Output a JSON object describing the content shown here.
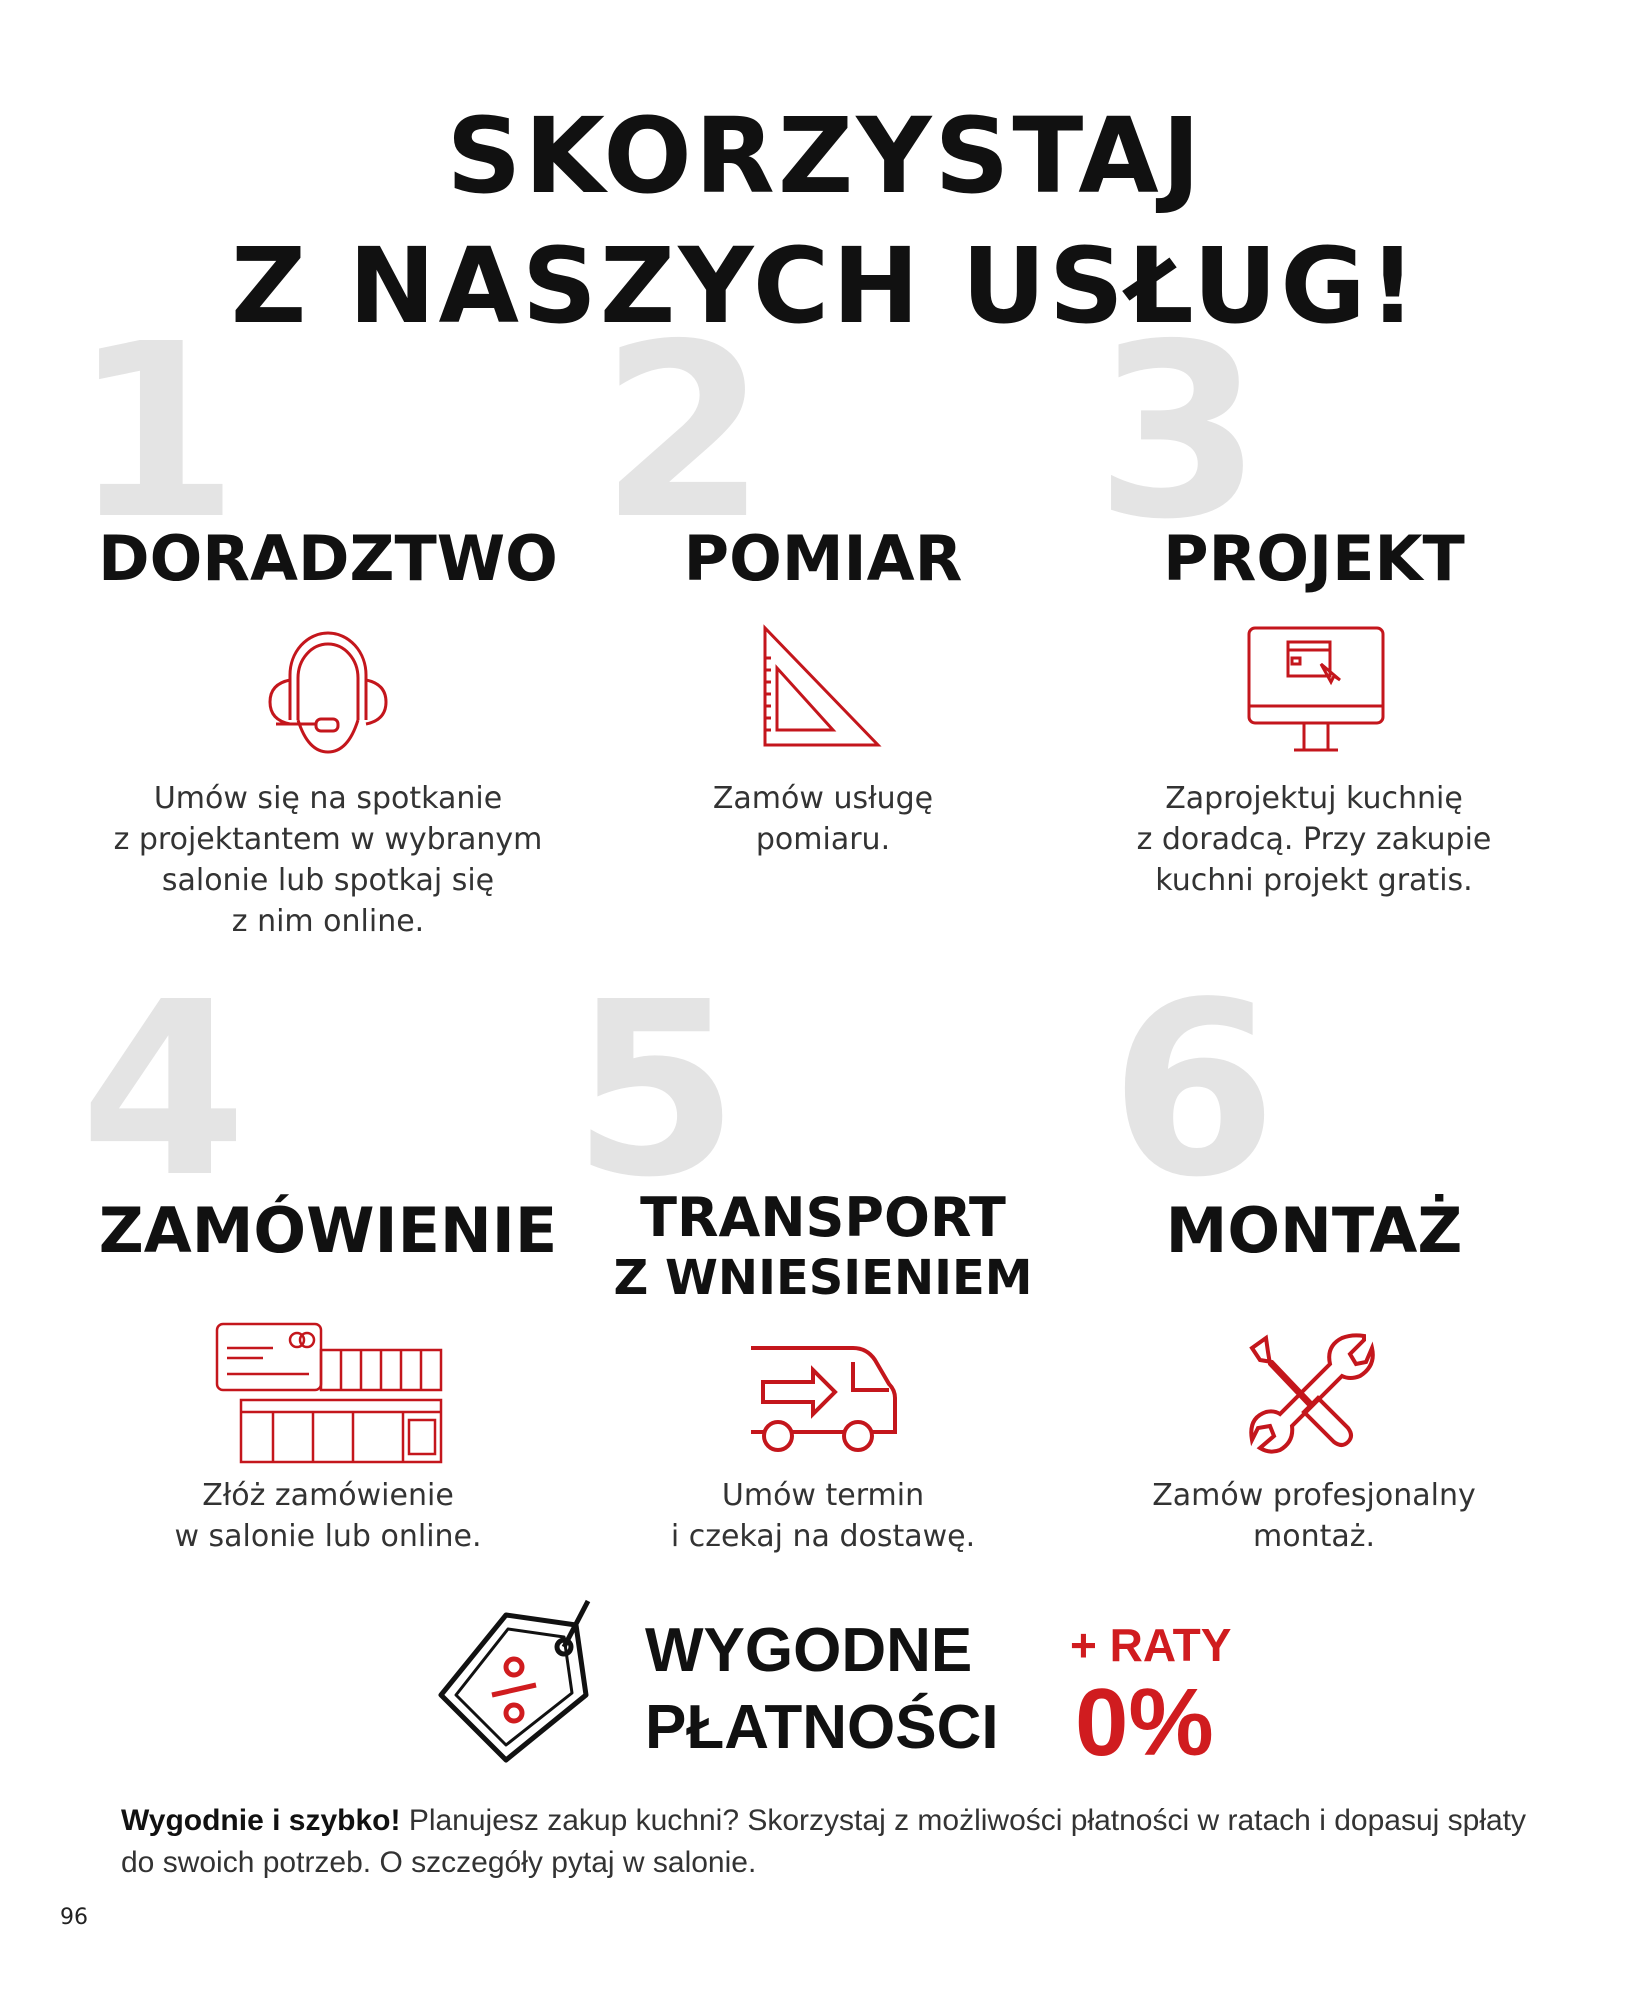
{
  "title": {
    "line1": "SKORZYSTAJ",
    "line2": "Z NASZYCH USŁUG!"
  },
  "services": [
    {
      "number": "1",
      "title": "DORADZTWO",
      "icon": "headset-icon",
      "desc": [
        "Umów się na spotkanie",
        "z projektantem w wybranym",
        "salonie lub spotkaj się",
        "z nim online."
      ]
    },
    {
      "number": "2",
      "title": "POMIAR",
      "icon": "set-square-ruler-icon",
      "desc": [
        "Zamów usługę",
        "pomiaru."
      ]
    },
    {
      "number": "3",
      "title": "PROJEKT",
      "icon": "computer-monitor-icon",
      "desc": [
        "Zaprojektuj kuchnię",
        "z doradcą. Przy zakupie",
        "kuchni projekt gratis."
      ]
    },
    {
      "number": "4",
      "title": "ZAMÓWIENIE",
      "icon": "credit-card-kitchen-icon",
      "desc": [
        "Złóż zamówienie",
        "w salonie lub online."
      ]
    },
    {
      "number": "5",
      "title_line1": "TRANSPORT",
      "title_line2": "Z WNIESIENIEM",
      "icon": "delivery-van-icon",
      "desc": [
        "Umów termin",
        "i czekaj na dostawę."
      ]
    },
    {
      "number": "6",
      "title": "MONTAŻ",
      "icon": "wrench-screwdriver-icon",
      "desc": [
        "Zamów profesjonalny",
        "montaż."
      ]
    }
  ],
  "payment": {
    "line1": "WYGODNE",
    "line2": "PŁATNOŚCI",
    "badge_top": "+ RATY",
    "badge_value": "0%",
    "icon": "percent-price-tag-icon"
  },
  "footer": {
    "bold": "Wygodnie i szybko!",
    "text": " Planujesz zakup kuchni? Skorzystaj z możliwości płatności w ratach i dopasuj spłaty do swoich potrzeb. O szczegóły pytaj w salonie."
  },
  "page_number": "96",
  "colors": {
    "accent": "#d01c1f",
    "number_watermark": "#e4e4e4",
    "text": "#111111"
  }
}
